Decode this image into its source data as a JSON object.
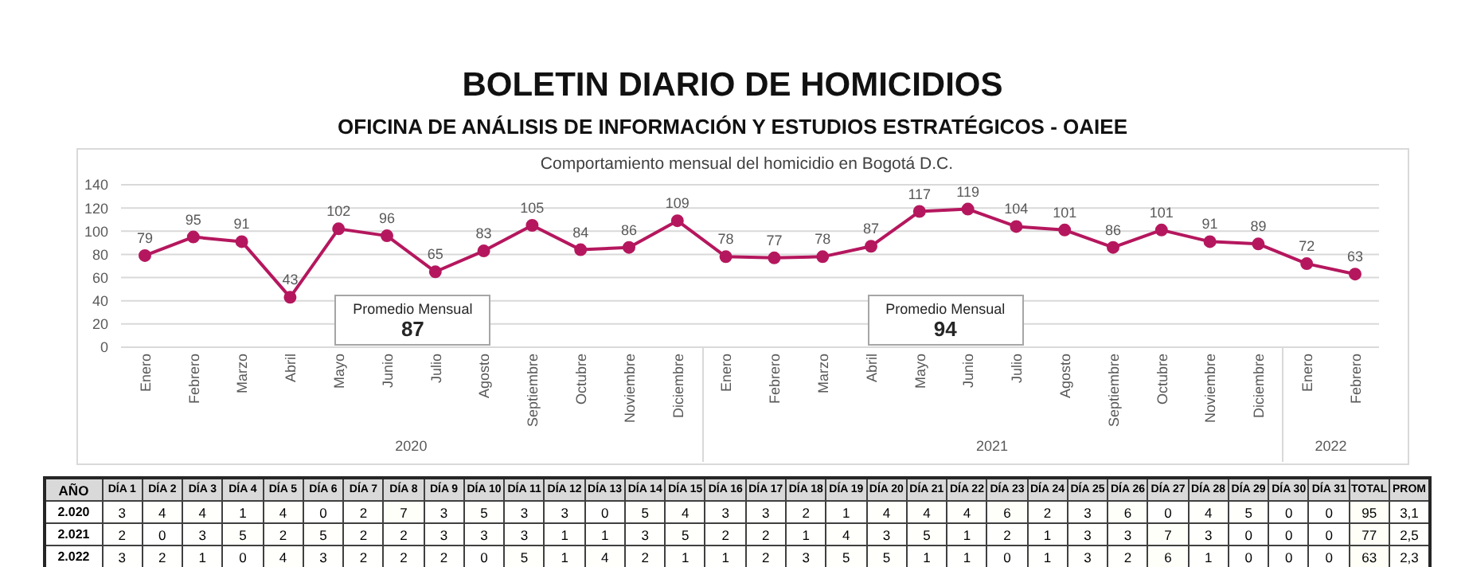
{
  "chart_data": [
    {
      "type": "line",
      "title": "BOLETIN DIARIO DE HOMICIDIOS",
      "subtitle": "OFICINA DE ANÁLISIS DE INFORMACIÓN Y ESTUDIOS ESTRATÉGICOS - OAIEE",
      "annotations": [
        "Comportamiento mensual del homicidio en Bogotá D.C.",
        "2020",
        "2021",
        "2022",
        "Promedio Mensual",
        "87",
        "Promedio Mensual",
        "94"
      ],
      "categories": [
        "Enero",
        "Febrero",
        "Marzo",
        "Abril",
        "Mayo",
        "Junio",
        "Julio",
        "Agosto",
        "Septiembre",
        "Octubre",
        "Noviembre",
        "Diciembre",
        "Enero",
        "Febrero",
        "Marzo",
        "Abril",
        "Mayo",
        "Junio",
        "Julio",
        "Agosto",
        "Septiembre",
        "Octubre",
        "Noviembre",
        "Diciembre",
        "Enero",
        "Febrero"
      ],
      "series": [
        {
          "color": "#b5175e",
          "values": [
            79,
            95,
            91,
            43,
            102,
            96,
            65,
            83,
            105,
            84,
            86,
            109,
            78,
            77,
            78,
            87,
            117,
            119,
            104,
            101,
            86,
            101,
            91,
            89,
            72,
            63
          ]
        }
      ],
      "ylim": [
        0,
        140
      ],
      "yticks": [
        0,
        20,
        40,
        60,
        80,
        100,
        120,
        140
      ],
      "grid": "y",
      "marker": "circle",
      "data_labels": true
    },
    {
      "type": "heatmap",
      "ylabel": "AÑO",
      "categories": [
        "DÍA 1",
        "DÍA 2",
        "DÍA 3",
        "DÍA 4",
        "DÍA 5",
        "DÍA 6",
        "DÍA 7",
        "DÍA 8",
        "DÍA 9",
        "DÍA 10",
        "DÍA 11",
        "DÍA 12",
        "DÍA 13",
        "DÍA 14",
        "DÍA 15",
        "DÍA 16",
        "DÍA 17",
        "DÍA 18",
        "DÍA 19",
        "DÍA 20",
        "DÍA 21",
        "DÍA 22",
        "DÍA 23",
        "DÍA 24",
        "DÍA 25",
        "DÍA 26",
        "DÍA 27",
        "DÍA 28",
        "DÍA 29",
        "DÍA 30",
        "DÍA 31",
        "TOTAL",
        "PROM"
      ],
      "y_categories": [
        "2.020",
        "2.021",
        "2.022"
      ],
      "cells": [
        [
          3,
          4,
          4,
          1,
          4,
          0,
          2,
          7,
          3,
          5,
          3,
          3,
          0,
          5,
          4,
          3,
          3,
          2,
          1,
          4,
          4,
          4,
          6,
          2,
          3,
          6,
          0,
          4,
          5,
          0,
          0,
          95,
          3.1
        ],
        [
          2,
          0,
          3,
          5,
          2,
          5,
          2,
          2,
          3,
          3,
          3,
          1,
          1,
          3,
          5,
          2,
          2,
          1,
          4,
          3,
          5,
          1,
          2,
          1,
          3,
          3,
          7,
          3,
          0,
          0,
          0,
          77,
          2.5
        ],
        [
          3,
          2,
          1,
          0,
          4,
          3,
          2,
          2,
          2,
          0,
          5,
          1,
          4,
          2,
          1,
          1,
          2,
          3,
          5,
          5,
          1,
          1,
          0,
          1,
          3,
          2,
          6,
          1,
          0,
          0,
          0,
          63,
          2.3
        ]
      ],
      "cell_labels": [
        [
          "3",
          "4",
          "4",
          "1",
          "4",
          "0",
          "2",
          "7",
          "3",
          "5",
          "3",
          "3",
          "0",
          "5",
          "4",
          "3",
          "3",
          "2",
          "1",
          "4",
          "4",
          "4",
          "6",
          "2",
          "3",
          "6",
          "0",
          "4",
          "5",
          "0",
          "0",
          "95",
          "3,1"
        ],
        [
          "2",
          "0",
          "3",
          "5",
          "2",
          "5",
          "2",
          "2",
          "3",
          "3",
          "3",
          "1",
          "1",
          "3",
          "5",
          "2",
          "2",
          "1",
          "4",
          "3",
          "5",
          "1",
          "2",
          "1",
          "3",
          "3",
          "7",
          "3",
          "0",
          "0",
          "0",
          "77",
          "2,5"
        ],
        [
          "3",
          "2",
          "1",
          "0",
          "4",
          "3",
          "2",
          "2",
          "2",
          "0",
          "5",
          "1",
          "4",
          "2",
          "1",
          "1",
          "2",
          "3",
          "5",
          "5",
          "1",
          "1",
          "0",
          "1",
          "3",
          "2",
          "6",
          "1",
          "0",
          "0",
          "0",
          "63",
          "2,3"
        ]
      ],
      "data_labels": true
    }
  ]
}
